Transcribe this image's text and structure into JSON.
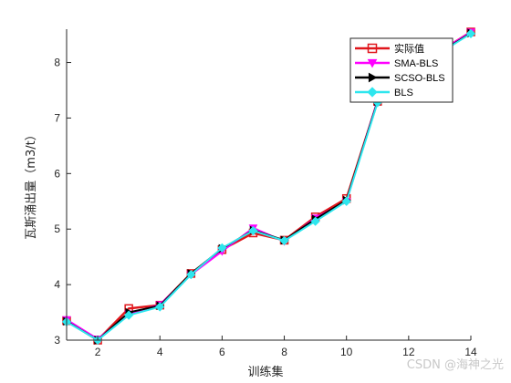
{
  "chart_data": {
    "type": "line",
    "xlabel": "训练集",
    "ylabel": "瓦斯涌出量（m3/t）",
    "xlim": [
      1,
      14
    ],
    "ylim": [
      3,
      8.6
    ],
    "x_ticks": [
      "2",
      "4",
      "6",
      "8",
      "10",
      "12",
      "14"
    ],
    "y_ticks": [
      "3",
      "4",
      "5",
      "6",
      "7",
      "8"
    ],
    "grid": false,
    "legend_position": "top-right",
    "x": [
      1,
      2,
      3,
      4,
      5,
      6,
      7,
      8,
      9,
      10,
      11,
      12,
      13,
      14
    ],
    "series": [
      {
        "name": "实际值",
        "color": "#e0151b",
        "marker": "square",
        "values": [
          3.35,
          3.0,
          3.57,
          3.63,
          4.2,
          4.63,
          4.93,
          4.8,
          5.22,
          5.55,
          7.3,
          7.8,
          8.2,
          8.55
        ]
      },
      {
        "name": "SMA-BLS",
        "color": "#ff00ff",
        "marker": "triangle-down",
        "values": [
          3.37,
          3.02,
          3.47,
          3.64,
          4.18,
          4.6,
          5.02,
          4.78,
          5.2,
          5.5,
          7.32,
          7.85,
          8.2,
          8.55
        ]
      },
      {
        "name": "SCSO-BLS",
        "color": "#000000",
        "marker": "triangle-right",
        "values": [
          3.34,
          3.0,
          3.5,
          3.62,
          4.2,
          4.65,
          4.98,
          4.8,
          5.18,
          5.52,
          7.3,
          7.82,
          8.18,
          8.53
        ]
      },
      {
        "name": "BLS",
        "color": "#2ee6ee",
        "marker": "diamond",
        "values": [
          3.33,
          3.0,
          3.45,
          3.6,
          4.18,
          4.66,
          4.97,
          4.79,
          5.14,
          5.5,
          7.28,
          7.8,
          8.17,
          8.52
        ]
      }
    ]
  },
  "watermark": "CSDN @海神之光"
}
